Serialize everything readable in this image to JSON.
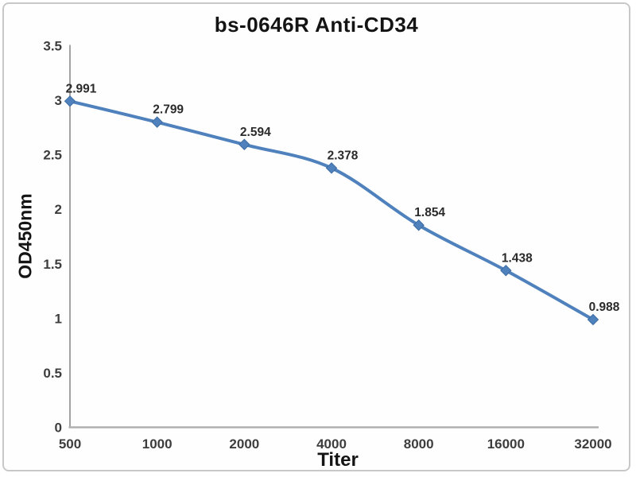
{
  "chart_data": {
    "type": "line",
    "title": "bs-0646R Anti-CD34",
    "xlabel": "Titer",
    "ylabel": "OD450nm",
    "categories": [
      "500",
      "1000",
      "2000",
      "4000",
      "8000",
      "16000",
      "32000"
    ],
    "values": [
      2.991,
      2.799,
      2.594,
      2.378,
      1.854,
      1.438,
      0.988
    ],
    "data_labels": [
      "2.991",
      "2.799",
      "2.594",
      "2.378",
      "1.854",
      "1.438",
      "0.988"
    ],
    "yticks": [
      "3.5",
      "3",
      "2.5",
      "2",
      "1.5",
      "1",
      "0.5",
      "0"
    ],
    "ylim": [
      0,
      3.5
    ],
    "grid": false,
    "legend_position": "none",
    "smooth": true,
    "marker": "diamond",
    "line_color": "#4f81bd",
    "marker_edge_color": "#3e6da3"
  }
}
